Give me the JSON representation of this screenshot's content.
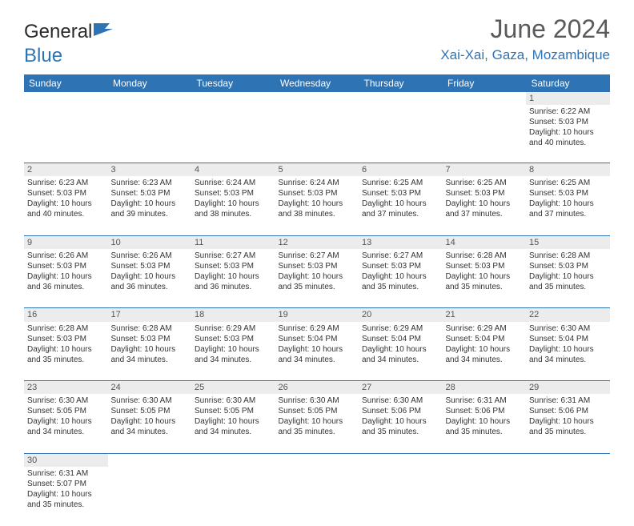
{
  "logo": {
    "text1": "General",
    "text2": "Blue"
  },
  "title": "June 2024",
  "location": "Xai-Xai, Gaza, Mozambique",
  "day_headers": [
    "Sunday",
    "Monday",
    "Tuesday",
    "Wednesday",
    "Thursday",
    "Friday",
    "Saturday"
  ],
  "colors": {
    "header_bg": "#2e74b5",
    "header_text": "#ffffff",
    "accent": "#2e74b5",
    "daynum_bg": "#ececec",
    "body_text": "#333333"
  },
  "weeks": [
    [
      null,
      null,
      null,
      null,
      null,
      null,
      {
        "n": "1",
        "sunrise": "6:22 AM",
        "sunset": "5:03 PM",
        "daylight": "10 hours",
        "mins": "and 40 minutes."
      }
    ],
    [
      {
        "n": "2",
        "sunrise": "6:23 AM",
        "sunset": "5:03 PM",
        "daylight": "10 hours",
        "mins": "and 40 minutes."
      },
      {
        "n": "3",
        "sunrise": "6:23 AM",
        "sunset": "5:03 PM",
        "daylight": "10 hours",
        "mins": "and 39 minutes."
      },
      {
        "n": "4",
        "sunrise": "6:24 AM",
        "sunset": "5:03 PM",
        "daylight": "10 hours",
        "mins": "and 38 minutes."
      },
      {
        "n": "5",
        "sunrise": "6:24 AM",
        "sunset": "5:03 PM",
        "daylight": "10 hours",
        "mins": "and 38 minutes."
      },
      {
        "n": "6",
        "sunrise": "6:25 AM",
        "sunset": "5:03 PM",
        "daylight": "10 hours",
        "mins": "and 37 minutes."
      },
      {
        "n": "7",
        "sunrise": "6:25 AM",
        "sunset": "5:03 PM",
        "daylight": "10 hours",
        "mins": "and 37 minutes."
      },
      {
        "n": "8",
        "sunrise": "6:25 AM",
        "sunset": "5:03 PM",
        "daylight": "10 hours",
        "mins": "and 37 minutes."
      }
    ],
    [
      {
        "n": "9",
        "sunrise": "6:26 AM",
        "sunset": "5:03 PM",
        "daylight": "10 hours",
        "mins": "and 36 minutes."
      },
      {
        "n": "10",
        "sunrise": "6:26 AM",
        "sunset": "5:03 PM",
        "daylight": "10 hours",
        "mins": "and 36 minutes."
      },
      {
        "n": "11",
        "sunrise": "6:27 AM",
        "sunset": "5:03 PM",
        "daylight": "10 hours",
        "mins": "and 36 minutes."
      },
      {
        "n": "12",
        "sunrise": "6:27 AM",
        "sunset": "5:03 PM",
        "daylight": "10 hours",
        "mins": "and 35 minutes."
      },
      {
        "n": "13",
        "sunrise": "6:27 AM",
        "sunset": "5:03 PM",
        "daylight": "10 hours",
        "mins": "and 35 minutes."
      },
      {
        "n": "14",
        "sunrise": "6:28 AM",
        "sunset": "5:03 PM",
        "daylight": "10 hours",
        "mins": "and 35 minutes."
      },
      {
        "n": "15",
        "sunrise": "6:28 AM",
        "sunset": "5:03 PM",
        "daylight": "10 hours",
        "mins": "and 35 minutes."
      }
    ],
    [
      {
        "n": "16",
        "sunrise": "6:28 AM",
        "sunset": "5:03 PM",
        "daylight": "10 hours",
        "mins": "and 35 minutes."
      },
      {
        "n": "17",
        "sunrise": "6:28 AM",
        "sunset": "5:03 PM",
        "daylight": "10 hours",
        "mins": "and 34 minutes."
      },
      {
        "n": "18",
        "sunrise": "6:29 AM",
        "sunset": "5:03 PM",
        "daylight": "10 hours",
        "mins": "and 34 minutes."
      },
      {
        "n": "19",
        "sunrise": "6:29 AM",
        "sunset": "5:04 PM",
        "daylight": "10 hours",
        "mins": "and 34 minutes."
      },
      {
        "n": "20",
        "sunrise": "6:29 AM",
        "sunset": "5:04 PM",
        "daylight": "10 hours",
        "mins": "and 34 minutes."
      },
      {
        "n": "21",
        "sunrise": "6:29 AM",
        "sunset": "5:04 PM",
        "daylight": "10 hours",
        "mins": "and 34 minutes."
      },
      {
        "n": "22",
        "sunrise": "6:30 AM",
        "sunset": "5:04 PM",
        "daylight": "10 hours",
        "mins": "and 34 minutes."
      }
    ],
    [
      {
        "n": "23",
        "sunrise": "6:30 AM",
        "sunset": "5:05 PM",
        "daylight": "10 hours",
        "mins": "and 34 minutes."
      },
      {
        "n": "24",
        "sunrise": "6:30 AM",
        "sunset": "5:05 PM",
        "daylight": "10 hours",
        "mins": "and 34 minutes."
      },
      {
        "n": "25",
        "sunrise": "6:30 AM",
        "sunset": "5:05 PM",
        "daylight": "10 hours",
        "mins": "and 34 minutes."
      },
      {
        "n": "26",
        "sunrise": "6:30 AM",
        "sunset": "5:05 PM",
        "daylight": "10 hours",
        "mins": "and 35 minutes."
      },
      {
        "n": "27",
        "sunrise": "6:30 AM",
        "sunset": "5:06 PM",
        "daylight": "10 hours",
        "mins": "and 35 minutes."
      },
      {
        "n": "28",
        "sunrise": "6:31 AM",
        "sunset": "5:06 PM",
        "daylight": "10 hours",
        "mins": "and 35 minutes."
      },
      {
        "n": "29",
        "sunrise": "6:31 AM",
        "sunset": "5:06 PM",
        "daylight": "10 hours",
        "mins": "and 35 minutes."
      }
    ],
    [
      {
        "n": "30",
        "sunrise": "6:31 AM",
        "sunset": "5:07 PM",
        "daylight": "10 hours",
        "mins": "and 35 minutes."
      },
      null,
      null,
      null,
      null,
      null,
      null
    ]
  ],
  "labels": {
    "sunrise": "Sunrise: ",
    "sunset": "Sunset: ",
    "daylight": "Daylight: "
  }
}
